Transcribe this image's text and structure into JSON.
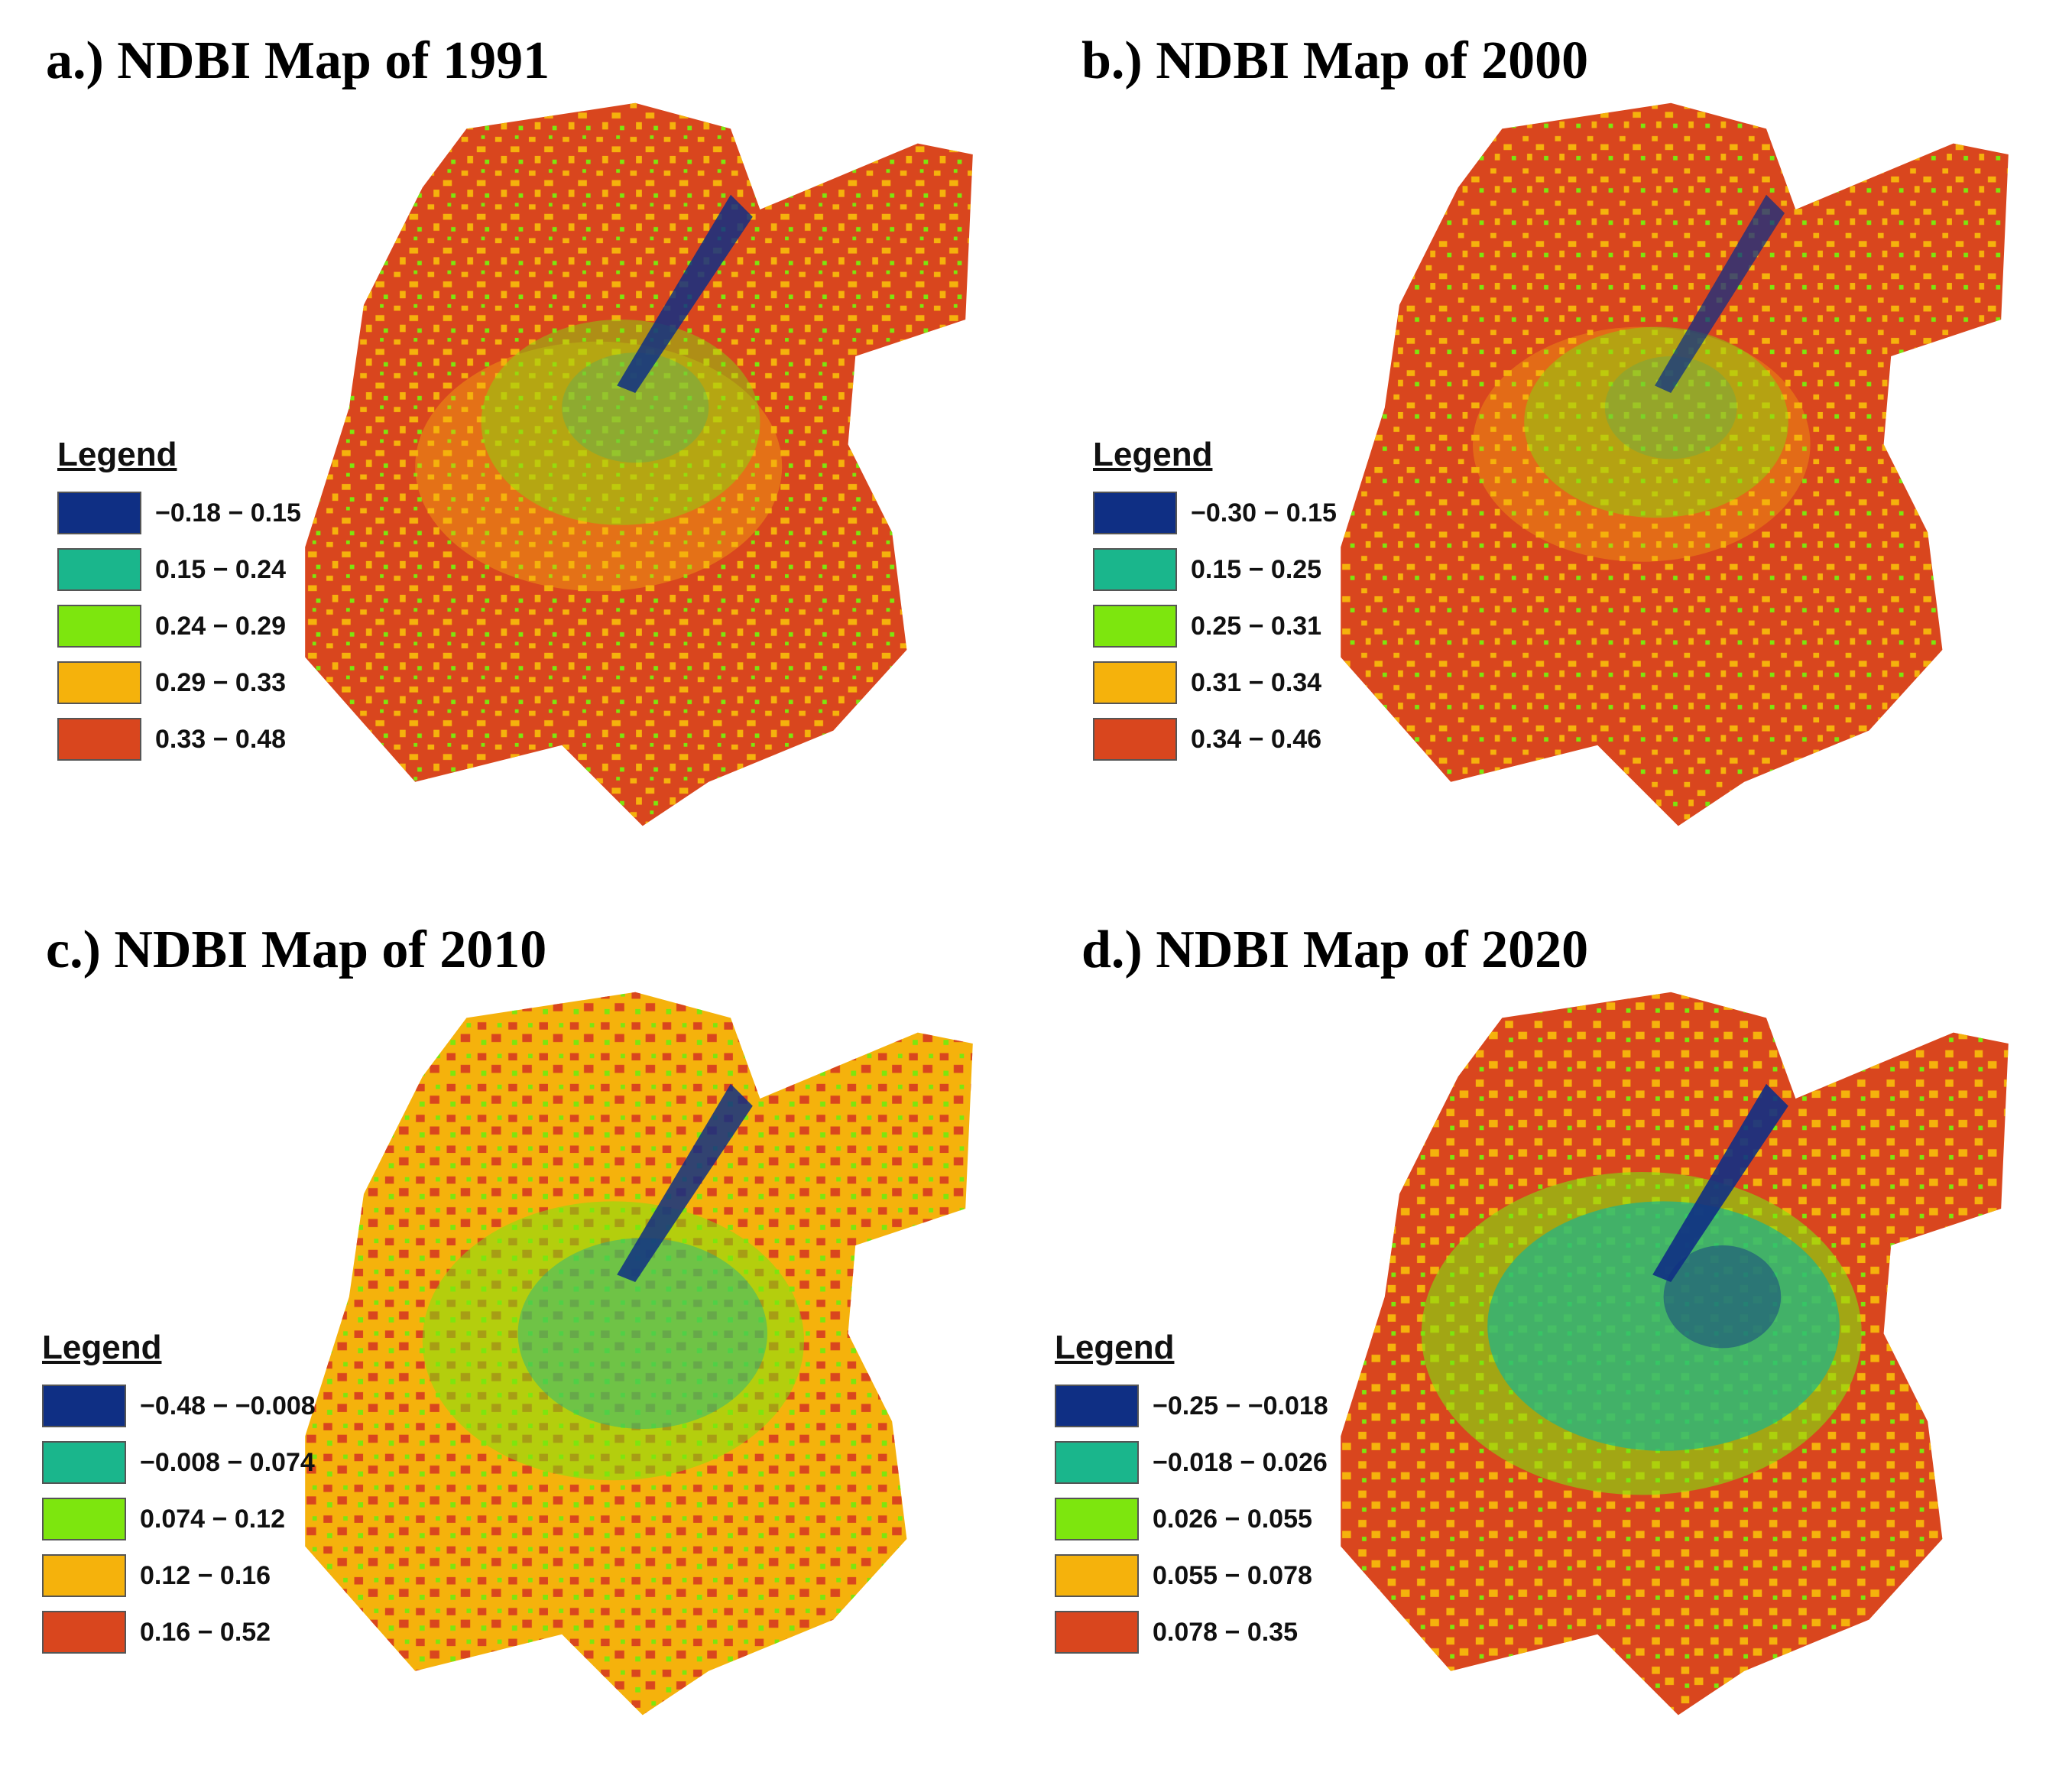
{
  "legend_title": "Legend",
  "class_colors": [
    "#0f2f84",
    "#1ab68c",
    "#7de60e",
    "#f5b20c",
    "#d9461e"
  ],
  "panels": [
    {
      "title": "a.) NDBI Map of 1991",
      "classes": [
        "−0.18 − 0.15",
        "0.15 − 0.24",
        "0.24 − 0.29",
        "0.29 − 0.33",
        "0.33 − 0.48"
      ]
    },
    {
      "title": "b.) NDBI Map of 2000",
      "classes": [
        "−0.30 − 0.15",
        "0.15 − 0.25",
        "0.25 − 0.31",
        "0.31 − 0.34",
        "0.34 − 0.46"
      ]
    },
    {
      "title": "c.) NDBI Map of 2010",
      "classes": [
        "−0.48 − −0.008",
        "−0.008 − 0.074",
        "0.074 − 0.12",
        "0.12 − 0.16",
        "0.16 − 0.52"
      ]
    },
    {
      "title": "d.) NDBI Map of 2020",
      "classes": [
        "−0.25 − −0.018",
        "−0.018 − 0.026",
        "0.026 − 0.055",
        "0.055 − 0.078",
        "0.078 − 0.35"
      ]
    }
  ]
}
